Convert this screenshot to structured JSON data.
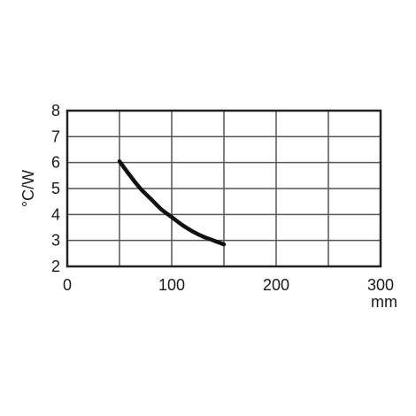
{
  "chart_data": {
    "type": "line",
    "title": "",
    "xlabel": "mm",
    "ylabel": "°C/W",
    "xlim": [
      0,
      300
    ],
    "ylim": [
      2,
      8
    ],
    "x_ticks": [
      0,
      50,
      100,
      150,
      200,
      250,
      300
    ],
    "x_tick_labels": [
      "0",
      "100",
      "200",
      "300"
    ],
    "x_tick_label_values": [
      0,
      100,
      200,
      300
    ],
    "y_ticks": [
      2,
      3,
      4,
      5,
      6,
      7,
      8
    ],
    "y_tick_labels": [
      "2",
      "3",
      "4",
      "5",
      "6",
      "7",
      "8"
    ],
    "grid": true,
    "line_color": "#111111",
    "series": [
      {
        "x": [
          50,
          60,
          70,
          80,
          90,
          100,
          110,
          120,
          130,
          140,
          150
        ],
        "y": [
          6.05,
          5.5,
          5.0,
          4.6,
          4.2,
          3.9,
          3.6,
          3.35,
          3.15,
          3.0,
          2.85
        ]
      }
    ]
  }
}
